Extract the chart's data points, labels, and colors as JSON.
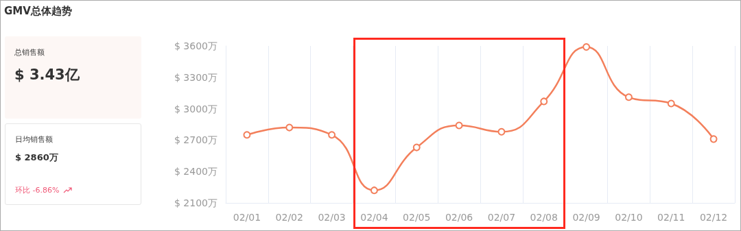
{
  "chart_data": {
    "type": "line",
    "title": "GMV总体趋势",
    "categories": [
      "02/01",
      "02/02",
      "02/03",
      "02/04",
      "02/05",
      "02/06",
      "02/07",
      "02/08",
      "02/09",
      "02/10",
      "02/11",
      "02/12"
    ],
    "series": [
      {
        "color": "#f37f5b",
        "values": [
          2750,
          2820,
          2750,
          2220,
          2630,
          2840,
          2780,
          3070,
          3590,
          3110,
          3050,
          2710
        ]
      }
    ],
    "ylim": [
      2100,
      3600
    ],
    "yticks": [
      {
        "value": 2100,
        "label": "$ 2100万"
      },
      {
        "value": 2400,
        "label": "$ 2400万"
      },
      {
        "value": 2700,
        "label": "$ 2700万"
      },
      {
        "value": 3000,
        "label": "$ 3000万"
      },
      {
        "value": 3300,
        "label": "$ 3300万"
      },
      {
        "value": 3600,
        "label": "$ 3600万"
      }
    ],
    "grid": "x",
    "marker": "circle",
    "line_style": "solid",
    "annotations": [
      "总销售额",
      "$ 3.43亿",
      "日均销售额",
      "$ 2860万",
      "环比 -6.86%"
    ]
  }
}
